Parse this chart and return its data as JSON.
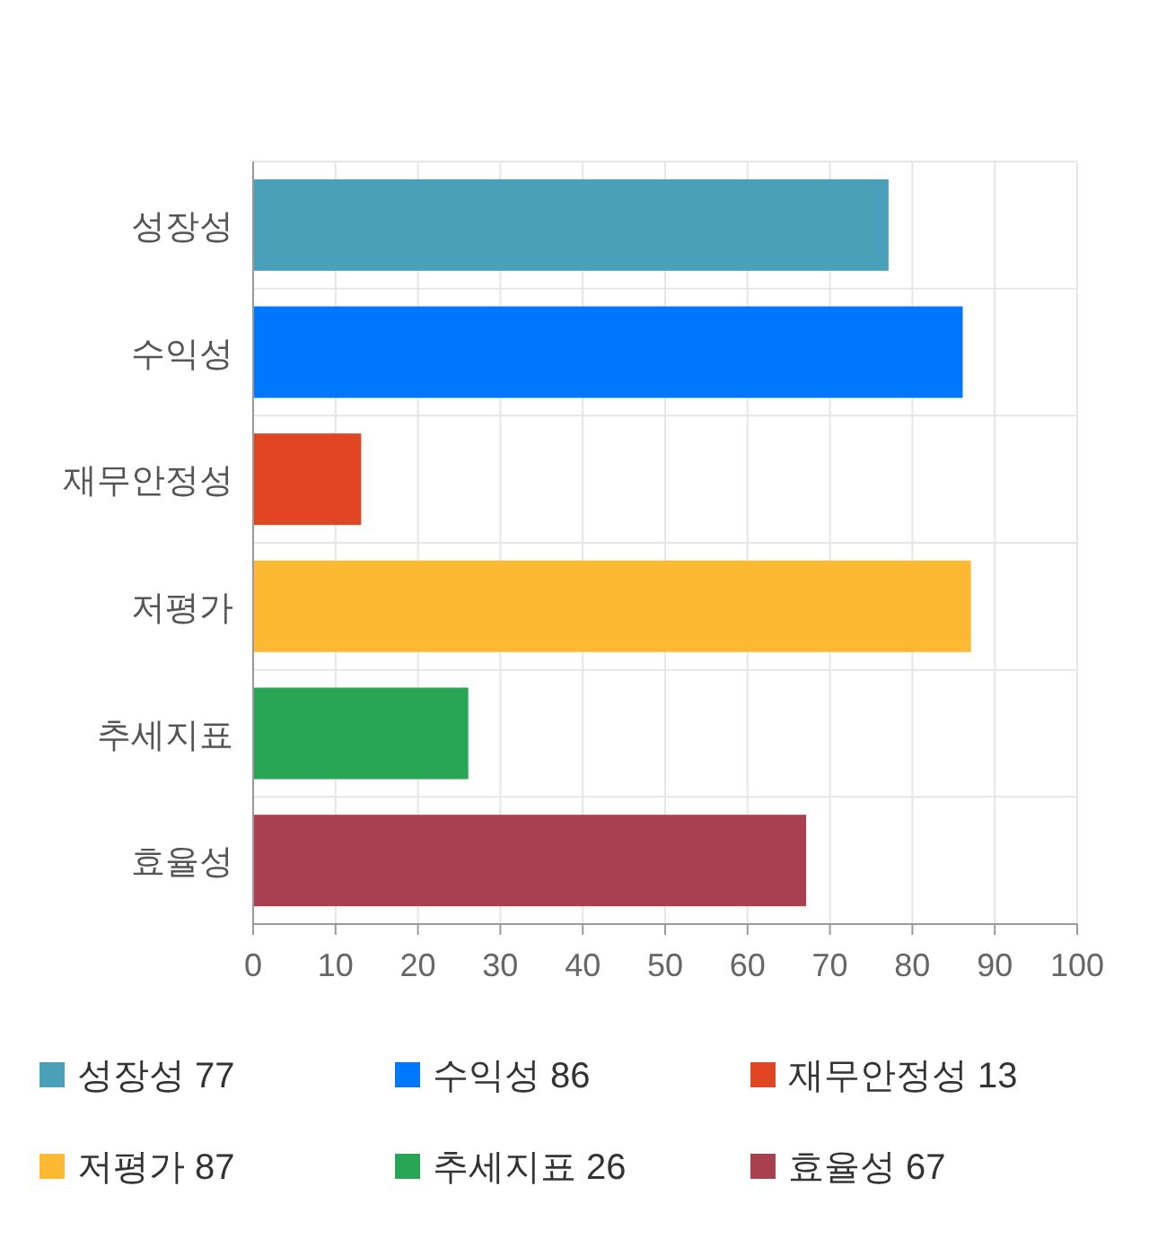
{
  "chart_data": {
    "type": "bar",
    "orientation": "horizontal",
    "stacked": true,
    "categories": [
      "성장성",
      "수익성",
      "재무안정성",
      "저평가",
      "추세지표",
      "효율성"
    ],
    "series": [
      {
        "name": "성장성 77",
        "color": "#4aa0b9",
        "values": [
          77,
          null,
          null,
          null,
          null,
          null
        ]
      },
      {
        "name": "수익성 86",
        "color": "#0077ff",
        "values": [
          null,
          86,
          null,
          null,
          null,
          null
        ]
      },
      {
        "name": "재무안정성 13",
        "color": "#e24523",
        "values": [
          null,
          null,
          13,
          null,
          null,
          null
        ]
      },
      {
        "name": "저평가 87",
        "color": "#fdb933",
        "values": [
          null,
          null,
          null,
          87,
          null,
          null
        ]
      },
      {
        "name": "추세지표 26",
        "color": "#28a655",
        "values": [
          null,
          null,
          null,
          null,
          26,
          null
        ]
      },
      {
        "name": "효율성 67",
        "color": "#a8404f",
        "values": [
          null,
          null,
          null,
          null,
          null,
          67
        ]
      }
    ],
    "xlim": [
      0,
      100
    ],
    "xticks": [
      0,
      10,
      20,
      30,
      40,
      50,
      60,
      70,
      80,
      90,
      100
    ],
    "grid": true,
    "legend": "bottom"
  }
}
